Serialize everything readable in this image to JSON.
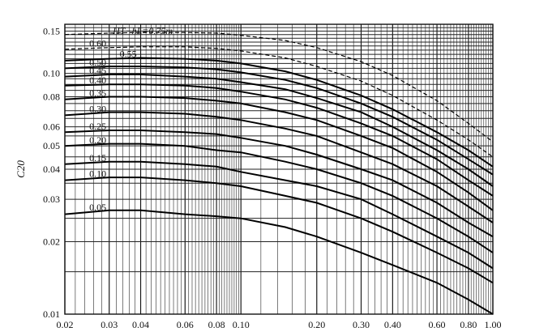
{
  "chart_data": {
    "type": "line",
    "title": "HT−hL=0.75m",
    "xlabel": "",
    "ylabel": "C20",
    "x_scale": "log",
    "y_scale": "log",
    "xlim": [
      0.02,
      1.0
    ],
    "ylim": [
      0.01,
      0.16
    ],
    "grid": true,
    "x_ticks": [
      {
        "value": 0.02,
        "label": "0.02"
      },
      {
        "value": 0.03,
        "label": "0.03"
      },
      {
        "value": 0.04,
        "label": "0.04"
      },
      {
        "value": 0.06,
        "label": "0.06"
      },
      {
        "value": 0.08,
        "label": "0.08"
      },
      {
        "value": 0.1,
        "label": "0.10"
      },
      {
        "value": 0.2,
        "label": "0.20"
      },
      {
        "value": 0.3,
        "label": "0.30"
      },
      {
        "value": 0.4,
        "label": "0.40"
      },
      {
        "value": 0.6,
        "label": "0.60"
      },
      {
        "value": 0.8,
        "label": "0.80"
      },
      {
        "value": 1.0,
        "label": "1.00"
      }
    ],
    "y_ticks": [
      {
        "value": 0.01,
        "label": "0.01"
      },
      {
        "value": 0.02,
        "label": "0.02"
      },
      {
        "value": 0.03,
        "label": "0.03"
      },
      {
        "value": 0.04,
        "label": "0.04"
      },
      {
        "value": 0.05,
        "label": "0.05"
      },
      {
        "value": 0.06,
        "label": "0.06"
      },
      {
        "value": 0.08,
        "label": "0.08"
      },
      {
        "value": 0.1,
        "label": "0.10"
      },
      {
        "value": 0.15,
        "label": "0.15"
      }
    ],
    "series": [
      {
        "name": "0.75m",
        "style": "dashed",
        "label_x": 0.1,
        "x": [
          0.02,
          0.03,
          0.04,
          0.06,
          0.08,
          0.1,
          0.15,
          0.2,
          0.3,
          0.4,
          0.6,
          0.8,
          1.0
        ],
        "y": [
          0.145,
          0.147,
          0.148,
          0.148,
          0.147,
          0.144,
          0.137,
          0.128,
          0.112,
          0.098,
          0.077,
          0.062,
          0.052
        ]
      },
      {
        "name": "0.60",
        "style": "dashed",
        "label_x": 0.025,
        "x": [
          0.02,
          0.03,
          0.04,
          0.06,
          0.08,
          0.1,
          0.15,
          0.2,
          0.3,
          0.4,
          0.6,
          0.8,
          1.0
        ],
        "y": [
          0.126,
          0.128,
          0.129,
          0.129,
          0.127,
          0.124,
          0.116,
          0.107,
          0.093,
          0.081,
          0.064,
          0.053,
          0.045
        ]
      },
      {
        "name": "0.55",
        "style": "solid",
        "label_x": 0.033,
        "x": [
          0.02,
          0.03,
          0.04,
          0.06,
          0.08,
          0.1,
          0.15,
          0.2,
          0.3,
          0.4,
          0.6,
          0.8,
          1.0
        ],
        "y": [
          0.113,
          0.115,
          0.116,
          0.115,
          0.113,
          0.11,
          0.102,
          0.094,
          0.081,
          0.071,
          0.057,
          0.048,
          0.041
        ]
      },
      {
        "name": "0.50",
        "style": "solid",
        "label_x": 0.025,
        "x": [
          0.02,
          0.03,
          0.04,
          0.06,
          0.08,
          0.1,
          0.15,
          0.2,
          0.3,
          0.4,
          0.6,
          0.8,
          1.0
        ],
        "y": [
          0.105,
          0.107,
          0.107,
          0.106,
          0.104,
          0.101,
          0.094,
          0.087,
          0.075,
          0.066,
          0.053,
          0.044,
          0.038
        ]
      },
      {
        "name": "0.45",
        "style": "solid",
        "label_x": 0.025,
        "x": [
          0.02,
          0.03,
          0.04,
          0.06,
          0.08,
          0.1,
          0.15,
          0.2,
          0.3,
          0.4,
          0.6,
          0.8,
          1.0
        ],
        "y": [
          0.097,
          0.099,
          0.099,
          0.097,
          0.095,
          0.092,
          0.086,
          0.079,
          0.069,
          0.06,
          0.048,
          0.04,
          0.034
        ]
      },
      {
        "name": "0.40",
        "style": "solid",
        "label_x": 0.025,
        "x": [
          0.02,
          0.03,
          0.04,
          0.06,
          0.08,
          0.1,
          0.15,
          0.2,
          0.3,
          0.4,
          0.6,
          0.8,
          1.0
        ],
        "y": [
          0.089,
          0.09,
          0.09,
          0.089,
          0.087,
          0.084,
          0.078,
          0.072,
          0.062,
          0.055,
          0.044,
          0.036,
          0.031
        ]
      },
      {
        "name": "0.35",
        "style": "solid",
        "label_x": 0.025,
        "x": [
          0.02,
          0.03,
          0.04,
          0.06,
          0.08,
          0.1,
          0.15,
          0.2,
          0.3,
          0.4,
          0.6,
          0.8,
          1.0
        ],
        "y": [
          0.078,
          0.08,
          0.08,
          0.079,
          0.077,
          0.075,
          0.069,
          0.064,
          0.055,
          0.049,
          0.039,
          0.032,
          0.027
        ]
      },
      {
        "name": "0.30",
        "style": "solid",
        "label_x": 0.025,
        "x": [
          0.02,
          0.03,
          0.04,
          0.06,
          0.08,
          0.1,
          0.15,
          0.2,
          0.3,
          0.4,
          0.6,
          0.8,
          1.0
        ],
        "y": [
          0.067,
          0.069,
          0.069,
          0.068,
          0.066,
          0.064,
          0.059,
          0.055,
          0.047,
          0.042,
          0.034,
          0.028,
          0.024
        ]
      },
      {
        "name": "0.25",
        "style": "solid",
        "label_x": 0.025,
        "x": [
          0.02,
          0.03,
          0.04,
          0.06,
          0.08,
          0.1,
          0.15,
          0.2,
          0.3,
          0.4,
          0.6,
          0.8,
          1.0
        ],
        "y": [
          0.057,
          0.058,
          0.058,
          0.057,
          0.056,
          0.054,
          0.05,
          0.046,
          0.04,
          0.036,
          0.029,
          0.024,
          0.021
        ]
      },
      {
        "name": "0.20",
        "style": "solid",
        "label_x": 0.025,
        "x": [
          0.02,
          0.03,
          0.04,
          0.06,
          0.08,
          0.1,
          0.15,
          0.2,
          0.3,
          0.4,
          0.6,
          0.8,
          1.0
        ],
        "y": [
          0.05,
          0.051,
          0.051,
          0.05,
          0.048,
          0.047,
          0.043,
          0.04,
          0.035,
          0.031,
          0.025,
          0.021,
          0.018
        ]
      },
      {
        "name": "0.15",
        "style": "solid",
        "label_x": 0.025,
        "x": [
          0.02,
          0.03,
          0.04,
          0.06,
          0.08,
          0.1,
          0.15,
          0.2,
          0.3,
          0.4,
          0.6,
          0.8,
          1.0
        ],
        "y": [
          0.042,
          0.043,
          0.043,
          0.042,
          0.041,
          0.039,
          0.036,
          0.034,
          0.03,
          0.026,
          0.021,
          0.018,
          0.0155
        ]
      },
      {
        "name": "0.10",
        "style": "solid",
        "label_x": 0.025,
        "x": [
          0.02,
          0.03,
          0.04,
          0.06,
          0.08,
          0.1,
          0.15,
          0.2,
          0.3,
          0.4,
          0.6,
          0.8,
          1.0
        ],
        "y": [
          0.036,
          0.037,
          0.037,
          0.036,
          0.035,
          0.034,
          0.031,
          0.029,
          0.025,
          0.022,
          0.018,
          0.0155,
          0.0135
        ]
      },
      {
        "name": "0.05",
        "style": "solid",
        "label_x": 0.025,
        "x": [
          0.02,
          0.03,
          0.04,
          0.06,
          0.08,
          0.1,
          0.15,
          0.2,
          0.3,
          0.4,
          0.6,
          0.8,
          1.0
        ],
        "y": [
          0.026,
          0.027,
          0.027,
          0.026,
          0.0255,
          0.025,
          0.023,
          0.021,
          0.018,
          0.016,
          0.0135,
          0.0115,
          0.01
        ]
      }
    ]
  }
}
